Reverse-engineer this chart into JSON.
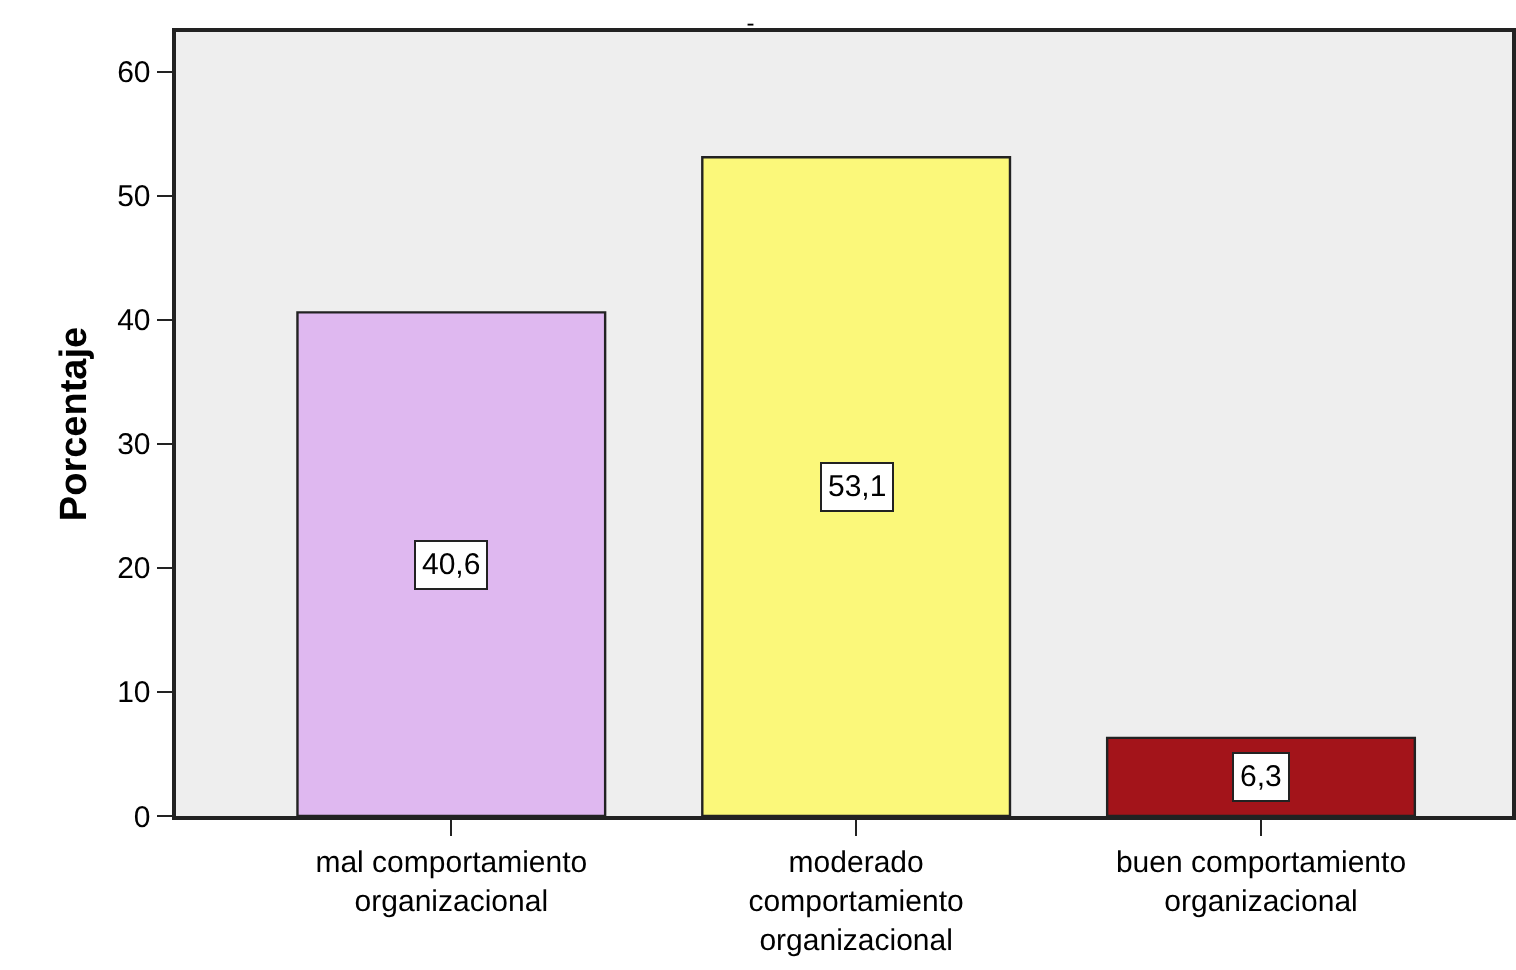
{
  "chart_data": {
    "type": "bar",
    "title": "-",
    "ylabel": "Porcentaje",
    "categories": [
      "mal comportamiento\norganizacional",
      "moderado\ncomportamiento\norganizacional",
      "buen comportamiento\norganizacional"
    ],
    "values": [
      40.6,
      53.1,
      6.3
    ],
    "colors": [
      "#dfb8f0",
      "#fbf87a",
      "#a3141a"
    ],
    "value_labels": [
      "40,6",
      "53,1",
      "6,3"
    ],
    "ylim": [
      0,
      63.2
    ],
    "yticks": [
      0,
      10,
      20,
      30,
      40,
      50,
      60
    ],
    "grid": false,
    "legend": false
  }
}
